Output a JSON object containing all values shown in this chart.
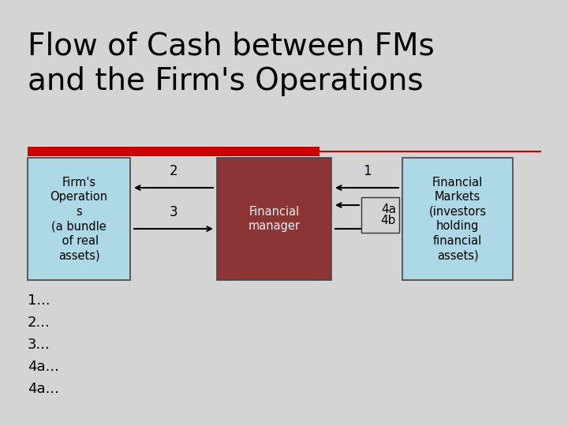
{
  "title": "Flow of Cash between FMs\nand the Firm's Operations",
  "title_fontsize": 28,
  "bg_color": "#d4d4d4",
  "red_bar_color": "#cc0000",
  "box_firm_color": "#add8e6",
  "box_fm_color": "#8b3535",
  "box_mkt_color": "#add8e6",
  "box_firm_text": "Firm's\nOperation\ns\n(a bundle\n of real\nassets)",
  "box_fm_text": "Financial\nmanager",
  "box_mkt_text": "Financial\nMarkets\n(investors\nholding\nfinancial\nassets)",
  "bullet_texts": [
    "1...",
    "2...",
    "3...",
    "4a...",
    "4a..."
  ]
}
